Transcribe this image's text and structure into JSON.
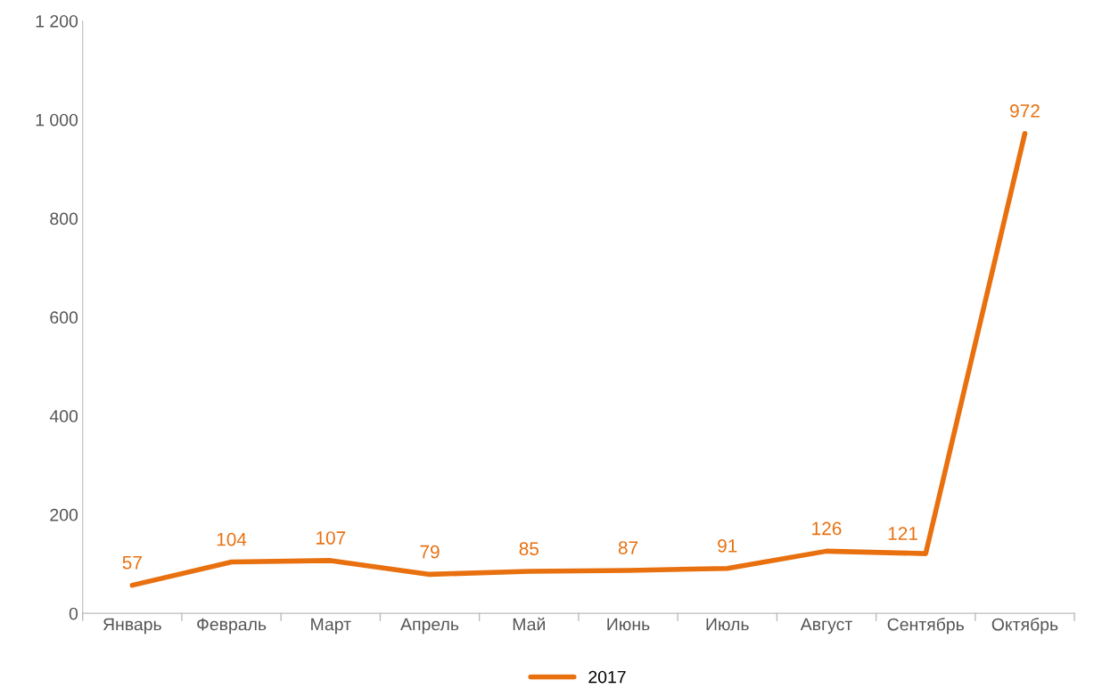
{
  "chart_data": {
    "type": "line",
    "categories": [
      "Январь",
      "Февраль",
      "Март",
      "Апрель",
      "Май",
      "Июнь",
      "Июль",
      "Август",
      "Сентябрь",
      "Октябрь"
    ],
    "series": [
      {
        "name": "2017",
        "color": "#e8700f",
        "values": [
          57,
          104,
          107,
          79,
          85,
          87,
          91,
          126,
          121,
          972
        ]
      }
    ],
    "ylim": [
      0,
      1200
    ],
    "yticks": [
      0,
      {
        "value": 200,
        "label": "200"
      },
      {
        "value": 400,
        "label": "400"
      },
      {
        "value": 600,
        "label": "600"
      },
      {
        "value": 800,
        "label": "800"
      },
      {
        "value": 1000,
        "label": "1 000"
      },
      {
        "value": 1200,
        "label": "1 200"
      }
    ],
    "data_labels": true,
    "legend": "bottom",
    "grid": false,
    "marker": "none",
    "line_style": "solid"
  }
}
